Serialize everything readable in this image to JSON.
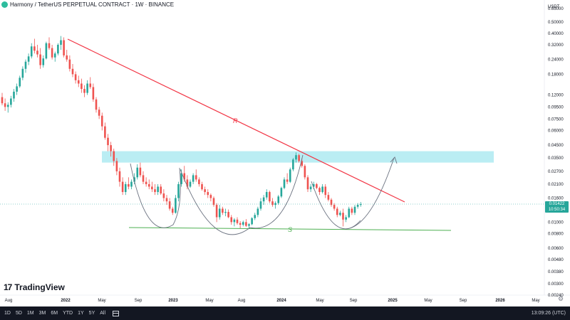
{
  "header": {
    "title": "Harmony / TetherUS PERPETUAL CONTRACT · 1W · BINANCE"
  },
  "price_axis": {
    "currency": "USDT",
    "labels": [
      "0.65000",
      "0.50000",
      "0.40000",
      "0.32000",
      "0.24000",
      "0.18000",
      "0.12000",
      "0.09500",
      "0.07500",
      "0.06000",
      "0.04500",
      "0.03500",
      "0.02700",
      "0.02100",
      "0.01600",
      "0.01000",
      "0.00800",
      "0.00600",
      "0.00480",
      "0.00380",
      "0.00300",
      "0.00240"
    ],
    "current_price": "0.01422",
    "countdown": "10:50:34"
  },
  "time_axis": {
    "labels": [
      "Aug",
      "2022",
      "May",
      "Sep",
      "2023",
      "May",
      "Aug",
      "2024",
      "May",
      "Sep",
      "2025",
      "May",
      "Sep",
      "2026",
      "May"
    ]
  },
  "toolbar": {
    "ranges": [
      "1D",
      "5D",
      "1M",
      "3M",
      "6M",
      "YTD",
      "1Y",
      "5Y",
      "All"
    ],
    "clock": "13:09:26 (UTC)"
  },
  "branding": {
    "logo_text": "TradingView"
  },
  "annotations": {
    "resistance_label": "R",
    "support_label": "S"
  },
  "colors": {
    "up": "#26a69a",
    "down": "#ef5350",
    "resistance": "#f23645",
    "support": "#4caf50",
    "zone": "#b2ebf2",
    "arrow": "#6b7280"
  },
  "chart_data": {
    "type": "candlestick",
    "symbol": "ONEUSDT.P",
    "scale": "log",
    "ylim": [
      0.0024,
      0.65
    ],
    "candles": [
      [
        0.115,
        0.125,
        0.098,
        0.102
      ],
      [
        0.102,
        0.112,
        0.088,
        0.095
      ],
      [
        0.095,
        0.104,
        0.085,
        0.099
      ],
      [
        0.099,
        0.118,
        0.094,
        0.112
      ],
      [
        0.112,
        0.135,
        0.105,
        0.128
      ],
      [
        0.128,
        0.15,
        0.12,
        0.142
      ],
      [
        0.142,
        0.175,
        0.138,
        0.168
      ],
      [
        0.168,
        0.21,
        0.16,
        0.2
      ],
      [
        0.2,
        0.24,
        0.185,
        0.23
      ],
      [
        0.23,
        0.27,
        0.215,
        0.255
      ],
      [
        0.255,
        0.33,
        0.245,
        0.31
      ],
      [
        0.31,
        0.36,
        0.27,
        0.285
      ],
      [
        0.285,
        0.32,
        0.25,
        0.265
      ],
      [
        0.265,
        0.3,
        0.2,
        0.215
      ],
      [
        0.215,
        0.26,
        0.205,
        0.245
      ],
      [
        0.245,
        0.34,
        0.24,
        0.33
      ],
      [
        0.33,
        0.37,
        0.29,
        0.3
      ],
      [
        0.3,
        0.32,
        0.24,
        0.25
      ],
      [
        0.25,
        0.28,
        0.23,
        0.27
      ],
      [
        0.27,
        0.33,
        0.26,
        0.32
      ],
      [
        0.32,
        0.38,
        0.29,
        0.35
      ],
      [
        0.35,
        0.37,
        0.25,
        0.26
      ],
      [
        0.26,
        0.29,
        0.23,
        0.24
      ],
      [
        0.24,
        0.26,
        0.19,
        0.2
      ],
      [
        0.2,
        0.22,
        0.17,
        0.18
      ],
      [
        0.18,
        0.19,
        0.15,
        0.16
      ],
      [
        0.16,
        0.175,
        0.14,
        0.15
      ],
      [
        0.15,
        0.165,
        0.125,
        0.135
      ],
      [
        0.135,
        0.145,
        0.115,
        0.125
      ],
      [
        0.125,
        0.16,
        0.12,
        0.15
      ],
      [
        0.15,
        0.17,
        0.135,
        0.14
      ],
      [
        0.14,
        0.15,
        0.105,
        0.11
      ],
      [
        0.11,
        0.115,
        0.085,
        0.09
      ],
      [
        0.09,
        0.095,
        0.075,
        0.08
      ],
      [
        0.08,
        0.085,
        0.06,
        0.065
      ],
      [
        0.065,
        0.07,
        0.05,
        0.052
      ],
      [
        0.052,
        0.056,
        0.04,
        0.045
      ],
      [
        0.045,
        0.048,
        0.036,
        0.04
      ],
      [
        0.04,
        0.042,
        0.03,
        0.033
      ],
      [
        0.033,
        0.035,
        0.025,
        0.027
      ],
      [
        0.027,
        0.029,
        0.02,
        0.022
      ],
      [
        0.022,
        0.024,
        0.017,
        0.018
      ],
      [
        0.018,
        0.022,
        0.017,
        0.021
      ],
      [
        0.021,
        0.024,
        0.019,
        0.02
      ],
      [
        0.02,
        0.023,
        0.019,
        0.022
      ],
      [
        0.022,
        0.026,
        0.021,
        0.024
      ],
      [
        0.024,
        0.031,
        0.023,
        0.029
      ],
      [
        0.029,
        0.032,
        0.024,
        0.025
      ],
      [
        0.025,
        0.027,
        0.021,
        0.022
      ],
      [
        0.022,
        0.024,
        0.02,
        0.021
      ],
      [
        0.021,
        0.023,
        0.019,
        0.02
      ],
      [
        0.02,
        0.022,
        0.018,
        0.019
      ],
      [
        0.019,
        0.021,
        0.017,
        0.018
      ],
      [
        0.018,
        0.021,
        0.017,
        0.02
      ],
      [
        0.02,
        0.021,
        0.017,
        0.0175
      ],
      [
        0.0175,
        0.019,
        0.015,
        0.016
      ],
      [
        0.016,
        0.017,
        0.014,
        0.015
      ],
      [
        0.015,
        0.016,
        0.0125,
        0.013
      ],
      [
        0.013,
        0.0135,
        0.0115,
        0.012
      ],
      [
        0.012,
        0.017,
        0.0118,
        0.016
      ],
      [
        0.016,
        0.022,
        0.015,
        0.021
      ],
      [
        0.021,
        0.028,
        0.02,
        0.026
      ],
      [
        0.026,
        0.03,
        0.022,
        0.023
      ],
      [
        0.023,
        0.025,
        0.019,
        0.02
      ],
      [
        0.02,
        0.023,
        0.0195,
        0.022
      ],
      [
        0.022,
        0.026,
        0.021,
        0.025
      ],
      [
        0.025,
        0.028,
        0.022,
        0.023
      ],
      [
        0.023,
        0.024,
        0.02,
        0.021
      ],
      [
        0.021,
        0.022,
        0.0185,
        0.019
      ],
      [
        0.019,
        0.02,
        0.017,
        0.018
      ],
      [
        0.018,
        0.019,
        0.016,
        0.017
      ],
      [
        0.017,
        0.0175,
        0.015,
        0.016
      ],
      [
        0.016,
        0.0165,
        0.0135,
        0.014
      ],
      [
        0.014,
        0.0145,
        0.01,
        0.011
      ],
      [
        0.011,
        0.014,
        0.0105,
        0.013
      ],
      [
        0.013,
        0.0135,
        0.0115,
        0.012
      ],
      [
        0.012,
        0.013,
        0.0112,
        0.0122
      ],
      [
        0.0122,
        0.0128,
        0.0108,
        0.011
      ],
      [
        0.011,
        0.0115,
        0.0095,
        0.01
      ],
      [
        0.01,
        0.0108,
        0.0092,
        0.0105
      ],
      [
        0.0105,
        0.011,
        0.0095,
        0.0098
      ],
      [
        0.0098,
        0.0102,
        0.0088,
        0.0095
      ],
      [
        0.0095,
        0.0103,
        0.0092,
        0.01
      ],
      [
        0.01,
        0.0106,
        0.0091,
        0.0093
      ],
      [
        0.0093,
        0.0098,
        0.0088,
        0.0096
      ],
      [
        0.0096,
        0.011,
        0.0094,
        0.0108
      ],
      [
        0.0108,
        0.012,
        0.0104,
        0.0115
      ],
      [
        0.0115,
        0.0135,
        0.011,
        0.013
      ],
      [
        0.013,
        0.016,
        0.0125,
        0.015
      ],
      [
        0.015,
        0.017,
        0.014,
        0.0162
      ],
      [
        0.0162,
        0.019,
        0.0155,
        0.018
      ],
      [
        0.018,
        0.0185,
        0.0145,
        0.015
      ],
      [
        0.015,
        0.016,
        0.0135,
        0.014
      ],
      [
        0.014,
        0.015,
        0.013,
        0.0145
      ],
      [
        0.0145,
        0.017,
        0.014,
        0.0165
      ],
      [
        0.0165,
        0.02,
        0.016,
        0.0195
      ],
      [
        0.0195,
        0.024,
        0.019,
        0.023
      ],
      [
        0.023,
        0.026,
        0.021,
        0.022
      ],
      [
        0.022,
        0.029,
        0.0215,
        0.028
      ],
      [
        0.028,
        0.035,
        0.027,
        0.034
      ],
      [
        0.034,
        0.039,
        0.032,
        0.037
      ],
      [
        0.037,
        0.038,
        0.032,
        0.033
      ],
      [
        0.033,
        0.035,
        0.029,
        0.03
      ],
      [
        0.03,
        0.031,
        0.023,
        0.024
      ],
      [
        0.024,
        0.025,
        0.018,
        0.019
      ],
      [
        0.019,
        0.021,
        0.018,
        0.02
      ],
      [
        0.02,
        0.022,
        0.019,
        0.021
      ],
      [
        0.021,
        0.0215,
        0.019,
        0.0195
      ],
      [
        0.0195,
        0.02,
        0.017,
        0.018
      ],
      [
        0.018,
        0.021,
        0.0175,
        0.02
      ],
      [
        0.02,
        0.021,
        0.016,
        0.017
      ],
      [
        0.017,
        0.018,
        0.015,
        0.0155
      ],
      [
        0.0155,
        0.016,
        0.0135,
        0.014
      ],
      [
        0.014,
        0.0145,
        0.0125,
        0.013
      ],
      [
        0.013,
        0.0135,
        0.011,
        0.0115
      ],
      [
        0.0115,
        0.0125,
        0.0112,
        0.012
      ],
      [
        0.012,
        0.013,
        0.0092,
        0.0105
      ],
      [
        0.0105,
        0.0115,
        0.01,
        0.011
      ],
      [
        0.011,
        0.0135,
        0.0108,
        0.013
      ],
      [
        0.013,
        0.0135,
        0.0115,
        0.012
      ],
      [
        0.012,
        0.014,
        0.0115,
        0.0135
      ],
      [
        0.0135,
        0.0145,
        0.013,
        0.014
      ],
      [
        0.014,
        0.0148,
        0.0135,
        0.0142
      ]
    ],
    "drawings": [
      {
        "type": "trendline",
        "label": "R",
        "from": {
          "time": "2021-08",
          "price": 0.37
        },
        "to": {
          "time": "2024-12",
          "price": 0.0145
        }
      },
      {
        "type": "horizontal_support",
        "label": "S",
        "from": {
          "time": "2022-07",
          "price": 0.0096
        },
        "to": {
          "time": "2025-06",
          "price": 0.0092
        }
      },
      {
        "type": "zone",
        "price_top": 0.04,
        "price_bottom": 0.032,
        "from": "2022-06",
        "to": "2025-03"
      },
      {
        "type": "cup_arcs",
        "count": 4
      },
      {
        "type": "projection_arrow",
        "target_price": 0.033
      }
    ]
  }
}
